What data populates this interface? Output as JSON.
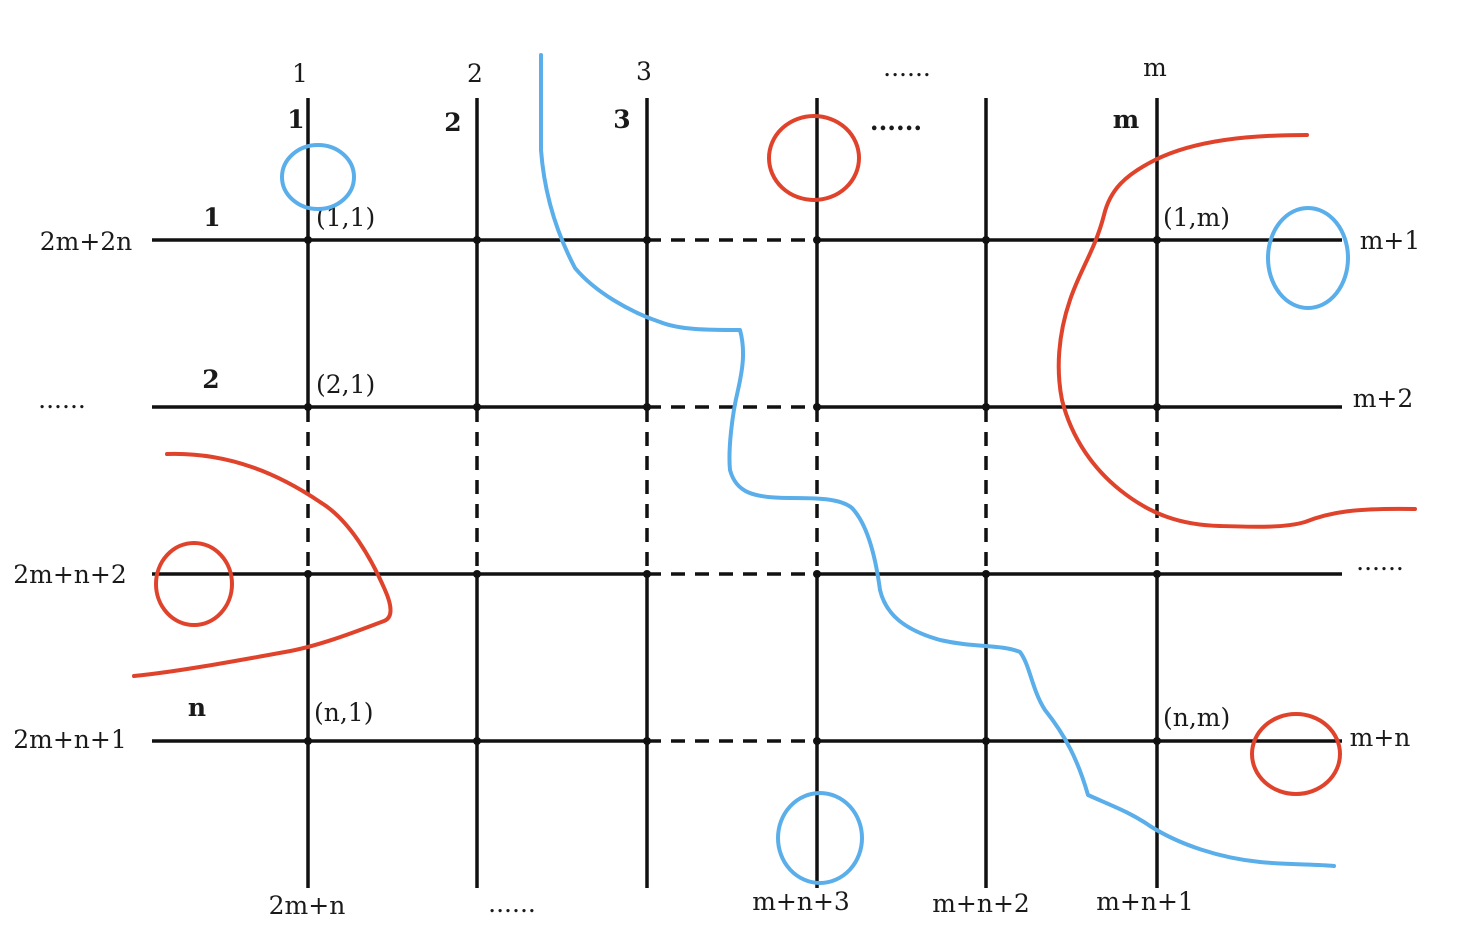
{
  "colors": {
    "line": "#111111",
    "red": "#e0432b",
    "blue": "#5aaeea"
  },
  "top_labels": [
    "1",
    "2",
    "3",
    "......",
    "m"
  ],
  "inner_column_labels": [
    "1",
    "2",
    "3",
    "......",
    "m"
  ],
  "inner_row_labels": [
    "1",
    "2",
    "n"
  ],
  "left_labels": [
    "2m+2n",
    "......",
    "2m+n+2",
    "2m+n+1"
  ],
  "right_labels": [
    "m+1",
    "m+2",
    "......",
    "m+n"
  ],
  "bottom_labels": [
    "2m+n",
    "......",
    "m+n+3",
    "m+n+2",
    "m+n+1"
  ],
  "cell_labels": {
    "r1c1": "(1,1)",
    "r1cm": "(1,m)",
    "r2c1": "(2,1)",
    "rnc1": "(n,1)",
    "rncm": "(n,m)"
  }
}
